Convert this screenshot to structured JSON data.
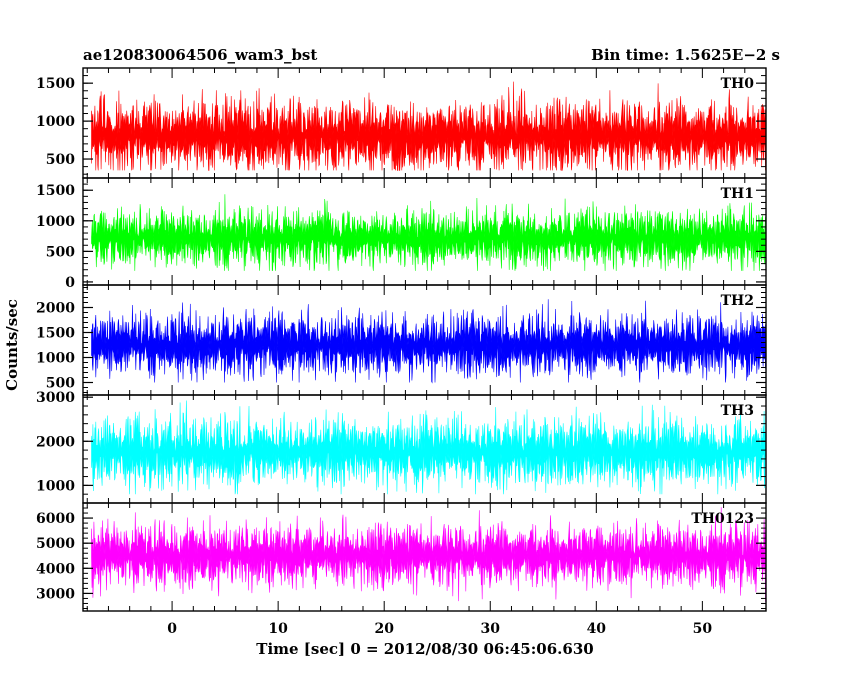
{
  "chart_data": {
    "type": "line",
    "title_left": "ae120830064506_wam3_bst",
    "title_right": "Bin time: 1.5625E−2 s",
    "xlabel": "Time [sec] 0 = 2012/08/30 06:45:06.630",
    "ylabel": "Counts/sec",
    "x_range": [
      -8.4,
      56
    ],
    "x_ticks": [
      0,
      10,
      20,
      30,
      40,
      50
    ],
    "x_minor_step": 2,
    "bin_time": 0.015625,
    "data_x_range": [
      -7.6,
      56
    ],
    "panels": [
      {
        "name": "TH0",
        "color": "#ff0000",
        "ylim": [
          250,
          1700
        ],
        "yticks": [
          500,
          1000,
          1500
        ],
        "minor": 100,
        "mean": 800,
        "std": 250,
        "min_level": 350,
        "max_level": 1700
      },
      {
        "name": "TH1",
        "color": "#00ff00",
        "ylim": [
          -50,
          1700
        ],
        "yticks": [
          0,
          500,
          1000,
          1500
        ],
        "minor": 100,
        "mean": 720,
        "std": 240,
        "min_level": 180,
        "max_level": 1680
      },
      {
        "name": "TH2",
        "color": "#0000ff",
        "ylim": [
          250,
          2450
        ],
        "yticks": [
          500,
          1000,
          1500,
          2000
        ],
        "minor": 100,
        "mean": 1250,
        "std": 330,
        "min_level": 500,
        "max_level": 2430
      },
      {
        "name": "TH3",
        "color": "#00ffff",
        "ylim": [
          600,
          3050
        ],
        "yticks": [
          1000,
          2000,
          3000
        ],
        "minor": 200,
        "mean": 1750,
        "std": 400,
        "min_level": 800,
        "max_level": 3000
      },
      {
        "name": "TH0123",
        "color": "#ff00ff",
        "ylim": [
          2300,
          6600
        ],
        "yticks": [
          3000,
          4000,
          5000,
          6000
        ],
        "minor": 200,
        "mean": 4500,
        "std": 650,
        "min_level": 2600,
        "max_level": 6450
      }
    ]
  }
}
